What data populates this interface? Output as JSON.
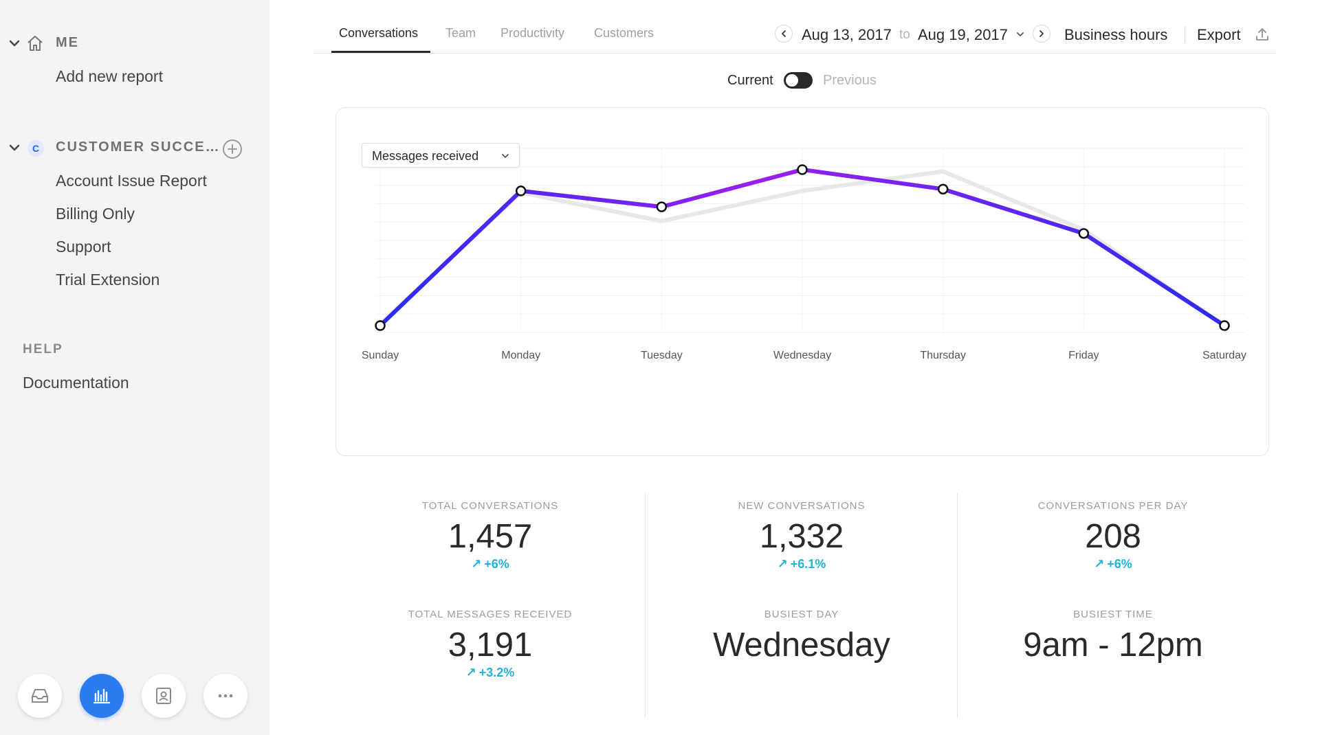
{
  "sidebar": {
    "me_title": "ME",
    "me_items": [
      "Add new report"
    ],
    "team_avatar": "C",
    "team_title": "CUSTOMER SUCCE…",
    "team_items": [
      "Account Issue Report",
      "Billing Only",
      "Support",
      "Trial Extension"
    ],
    "help_title": "HELP",
    "help_items": [
      "Documentation"
    ],
    "dock_icons": [
      "inbox-icon",
      "analytics-icon",
      "contacts-icon",
      "more-icon"
    ],
    "active_dock": "analytics-icon"
  },
  "header": {
    "tabs": [
      "Conversations",
      "Team",
      "Productivity",
      "Customers"
    ],
    "active_tab": "Conversations",
    "date_start": "Aug 13, 2017",
    "date_to": "to",
    "date_end": "Aug 19, 2017",
    "business_hours": "Business hours",
    "export": "Export"
  },
  "toggle": {
    "current": "Current",
    "previous": "Previous",
    "state": "current"
  },
  "metric_select": "Messages received",
  "colors": {
    "accent": "#2b7cf0",
    "line_start": "#2b2bf0",
    "line_end": "#9b1ff0",
    "previous_line": "#e8e8e8",
    "delta": "#20b2da"
  },
  "chart_data": {
    "type": "line",
    "categories": [
      "Sunday",
      "Monday",
      "Tuesday",
      "Wednesday",
      "Thursday",
      "Friday",
      "Saturday"
    ],
    "series": [
      {
        "name": "Current",
        "values": [
          0,
          76,
          67,
          88,
          77,
          52,
          0
        ]
      },
      {
        "name": "Previous",
        "values": [
          1,
          75,
          59,
          76,
          87,
          54,
          0
        ]
      }
    ],
    "ylim": [
      0,
      100
    ],
    "grid": true,
    "title": "",
    "xlabel": "",
    "ylabel": ""
  },
  "stats": [
    {
      "label": "TOTAL CONVERSATIONS",
      "value": "1,457",
      "delta": "+6%"
    },
    {
      "label": "NEW CONVERSATIONS",
      "value": "1,332",
      "delta": "+6.1%"
    },
    {
      "label": "CONVERSATIONS PER DAY",
      "value": "208",
      "delta": "+6%"
    },
    {
      "label": "TOTAL MESSAGES RECEIVED",
      "value": "3,191",
      "delta": "+3.2%"
    },
    {
      "label": "BUSIEST DAY",
      "value": "Wednesday"
    },
    {
      "label": "BUSIEST TIME",
      "value": "9am - 12pm"
    }
  ]
}
